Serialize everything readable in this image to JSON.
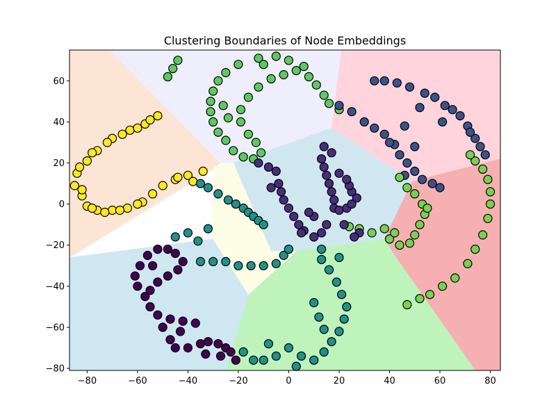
{
  "chart_data": {
    "type": "scatter",
    "title": "Clustering Boundaries of Node Embeddings",
    "xlabel": "",
    "ylabel": "",
    "xlim": [
      -87,
      84
    ],
    "ylim": [
      -81,
      75
    ],
    "x_ticks": [
      -80,
      -60,
      -40,
      -20,
      0,
      20,
      40,
      60,
      80
    ],
    "y_ticks": [
      -80,
      -60,
      -40,
      -20,
      0,
      20,
      40,
      60
    ],
    "grid": false,
    "legend": "none",
    "regions": [
      {
        "color": "#fde5d6",
        "polygon": [
          [
            -87,
            75
          ],
          [
            -71,
            75
          ],
          [
            -27,
            20
          ],
          [
            -30,
            17
          ],
          [
            -87,
            -26
          ]
        ]
      },
      {
        "color": "#eeeefc",
        "polygon": [
          [
            -71,
            75
          ],
          [
            21,
            75
          ],
          [
            20,
            37
          ],
          [
            -22,
            20
          ],
          [
            -27,
            20
          ]
        ]
      },
      {
        "color": "#ffd4dc",
        "polygon": [
          [
            21,
            75
          ],
          [
            84,
            75
          ],
          [
            84,
            22
          ],
          [
            49,
            11
          ],
          [
            17,
            37
          ]
        ]
      },
      {
        "color": "#d0e7f0",
        "polygon": [
          [
            -22,
            20
          ],
          [
            17,
            37
          ],
          [
            49,
            11
          ],
          [
            38,
            -17
          ],
          [
            3,
            -23
          ],
          [
            -7,
            -23
          ]
        ]
      },
      {
        "color": "#f6b0b2",
        "polygon": [
          [
            49,
            11
          ],
          [
            84,
            22
          ],
          [
            84,
            -81
          ],
          [
            74,
            -81
          ],
          [
            42,
            -25
          ],
          [
            38,
            -17
          ]
        ]
      },
      {
        "color": "#bef4bb",
        "polygon": [
          [
            -16,
            -44
          ],
          [
            3,
            -23
          ],
          [
            38,
            -17
          ],
          [
            42,
            -25
          ],
          [
            74,
            -81
          ],
          [
            -25,
            -81
          ]
        ]
      },
      {
        "color": "#cfe7f0",
        "polygon": [
          [
            -87,
            -26
          ],
          [
            -30,
            -17
          ],
          [
            -16,
            -44
          ],
          [
            -25,
            -81
          ],
          [
            -87,
            -81
          ]
        ]
      },
      {
        "color": "#fdfde6",
        "polygon": [
          [
            -30,
            17
          ],
          [
            -27,
            20
          ],
          [
            -22,
            20
          ],
          [
            -7,
            -23
          ],
          [
            3,
            -23
          ],
          [
            -16,
            -44
          ],
          [
            -30,
            -17
          ]
        ]
      }
    ],
    "series": [
      {
        "color": "#fde725",
        "points": [
          [
            -52,
            43
          ],
          [
            -57,
            39
          ],
          [
            -63,
            36
          ],
          [
            -70,
            32
          ],
          [
            -76,
            26
          ],
          [
            -80,
            21
          ],
          [
            -84,
            15
          ],
          [
            -85,
            9
          ],
          [
            -82,
            4
          ],
          [
            -80,
            -1
          ],
          [
            -76,
            -3
          ],
          [
            -70,
            -3
          ],
          [
            -64,
            -2
          ],
          [
            -58,
            1
          ],
          [
            -54,
            5
          ],
          [
            -50,
            9
          ],
          [
            -45,
            12
          ],
          [
            -40,
            14
          ],
          [
            -34,
            16
          ],
          [
            -38,
            11
          ],
          [
            -44,
            13
          ],
          [
            -60,
            0
          ],
          [
            -67,
            -3
          ],
          [
            -73,
            -4
          ],
          [
            -78,
            -2
          ],
          [
            -82,
            7
          ],
          [
            -83,
            18
          ],
          [
            -78,
            25
          ],
          [
            -72,
            30
          ],
          [
            -66,
            34
          ],
          [
            -60,
            37
          ],
          [
            -55,
            41
          ]
        ]
      },
      {
        "color": "#5ec962",
        "points": [
          [
            -44,
            70
          ],
          [
            -46,
            66
          ],
          [
            -48,
            62
          ],
          [
            -5,
            72
          ],
          [
            -12,
            71
          ],
          [
            -20,
            68
          ],
          [
            -25,
            64
          ],
          [
            -28,
            60
          ],
          [
            -30,
            55
          ],
          [
            -31,
            50
          ],
          [
            -31,
            45
          ],
          [
            -30,
            40
          ],
          [
            -28,
            35
          ],
          [
            -25,
            31
          ],
          [
            -22,
            26
          ],
          [
            -18,
            23
          ],
          [
            -14,
            22
          ],
          [
            -11,
            25
          ],
          [
            -13,
            30
          ],
          [
            -16,
            34
          ],
          [
            -19,
            40
          ],
          [
            -19,
            46
          ],
          [
            -16,
            52
          ],
          [
            -12,
            57
          ],
          [
            -7,
            61
          ],
          [
            -2,
            63
          ],
          [
            3,
            65
          ],
          [
            8,
            62
          ],
          [
            11,
            58
          ],
          [
            14,
            53
          ],
          [
            16,
            49
          ],
          [
            20,
            46
          ],
          [
            -26,
            48
          ],
          [
            -24,
            42
          ],
          [
            -10,
            68
          ],
          [
            0,
            70
          ],
          [
            6,
            67
          ]
        ]
      },
      {
        "color": "#3b528b",
        "points": [
          [
            20,
            48
          ],
          [
            25,
            45
          ],
          [
            30,
            40
          ],
          [
            34,
            37
          ],
          [
            38,
            34
          ],
          [
            42,
            29
          ],
          [
            44,
            24
          ],
          [
            47,
            20
          ],
          [
            50,
            16
          ],
          [
            53,
            12
          ],
          [
            57,
            10
          ],
          [
            60,
            8
          ],
          [
            34,
            60
          ],
          [
            38,
            60
          ],
          [
            43,
            59
          ],
          [
            48,
            57
          ],
          [
            54,
            54
          ],
          [
            58,
            52
          ],
          [
            62,
            48
          ],
          [
            65,
            46
          ],
          [
            68,
            43
          ],
          [
            71,
            38
          ],
          [
            74,
            32
          ],
          [
            76,
            28
          ],
          [
            78,
            24
          ],
          [
            46,
            38
          ],
          [
            40,
            30
          ],
          [
            50,
            28
          ],
          [
            46,
            14
          ],
          [
            52,
            47
          ],
          [
            61,
            40
          ],
          [
            72,
            35
          ]
        ]
      },
      {
        "color": "#7ad151",
        "points": [
          [
            47,
            -49
          ],
          [
            52,
            -46
          ],
          [
            56,
            -44
          ],
          [
            61,
            -40
          ],
          [
            66,
            -36
          ],
          [
            71,
            -29
          ],
          [
            74,
            -22
          ],
          [
            77,
            -15
          ],
          [
            79,
            -7
          ],
          [
            80,
            0
          ],
          [
            80,
            6
          ],
          [
            79,
            12
          ],
          [
            77,
            17
          ],
          [
            74,
            21
          ],
          [
            72,
            24
          ],
          [
            38,
            -12
          ],
          [
            33,
            -14
          ],
          [
            28,
            -12
          ],
          [
            24,
            -11
          ],
          [
            40,
            -17
          ],
          [
            44,
            -20
          ],
          [
            48,
            -19
          ],
          [
            50,
            -15
          ],
          [
            52,
            -10
          ],
          [
            54,
            -5
          ],
          [
            53,
            0
          ],
          [
            50,
            5
          ],
          [
            47,
            8
          ],
          [
            44,
            13
          ],
          [
            55,
            -2
          ],
          [
            42,
            -14
          ]
        ]
      },
      {
        "color": "#472d7b",
        "points": [
          [
            -12,
            20
          ],
          [
            -8,
            18
          ],
          [
            -5,
            16
          ],
          [
            -4,
            10
          ],
          [
            -3,
            6
          ],
          [
            -2,
            2
          ],
          [
            0,
            -2
          ],
          [
            2,
            -6
          ],
          [
            4,
            -10
          ],
          [
            6,
            -13
          ],
          [
            10,
            -16
          ],
          [
            13,
            -14
          ],
          [
            15,
            -10
          ],
          [
            13,
            22
          ],
          [
            14,
            18
          ],
          [
            15,
            14
          ],
          [
            16,
            10
          ],
          [
            17,
            6
          ],
          [
            18,
            2
          ],
          [
            18,
            -2
          ],
          [
            20,
            -3
          ],
          [
            23,
            -2
          ],
          [
            25,
            0
          ],
          [
            27,
            3
          ],
          [
            25,
            6
          ],
          [
            24,
            9
          ],
          [
            23,
            12
          ],
          [
            20,
            15
          ],
          [
            17,
            25
          ],
          [
            14,
            28
          ],
          [
            10,
            -6
          ],
          [
            8,
            -4
          ],
          [
            22,
            -10
          ],
          [
            28,
            -14
          ],
          [
            26,
            -16
          ],
          [
            -7,
            8
          ],
          [
            5,
            -14
          ]
        ]
      },
      {
        "color": "#21918c",
        "points": [
          [
            -35,
            10
          ],
          [
            -32,
            8
          ],
          [
            -28,
            5
          ],
          [
            -24,
            2
          ],
          [
            -21,
            0
          ],
          [
            -18,
            -2
          ],
          [
            -16,
            -4
          ],
          [
            -14,
            -6
          ],
          [
            -12,
            -8
          ],
          [
            -10,
            -10
          ],
          [
            -35,
            -28
          ],
          [
            -30,
            -28
          ],
          [
            -25,
            -28
          ],
          [
            -20,
            -30
          ],
          [
            -15,
            -30
          ],
          [
            -10,
            -30
          ],
          [
            -5,
            -29
          ],
          [
            -2,
            -25
          ],
          [
            0,
            -22
          ],
          [
            -45,
            -16
          ],
          [
            -40,
            -14
          ],
          [
            -36,
            -18
          ],
          [
            -32,
            -12
          ],
          [
            -18,
            -72
          ],
          [
            -14,
            -76
          ],
          [
            -10,
            -76
          ],
          [
            -5,
            -74
          ],
          [
            0,
            -70
          ],
          [
            5,
            -74
          ],
          [
            10,
            -76
          ],
          [
            14,
            -72
          ],
          [
            17,
            -67
          ],
          [
            20,
            -62
          ],
          [
            22,
            -56
          ],
          [
            23,
            -50
          ],
          [
            21,
            -44
          ],
          [
            19,
            -38
          ],
          [
            16,
            -32
          ],
          [
            13,
            -27
          ],
          [
            13,
            -22
          ],
          [
            10,
            -48
          ],
          [
            12,
            -55
          ],
          [
            14,
            -61
          ],
          [
            3,
            -79
          ],
          [
            -8,
            -68
          ],
          [
            20,
            -26
          ]
        ]
      },
      {
        "color": "#440154",
        "points": [
          [
            -57,
            -45
          ],
          [
            -60,
            -40
          ],
          [
            -61,
            -35
          ],
          [
            -59,
            -30
          ],
          [
            -56,
            -25
          ],
          [
            -52,
            -22
          ],
          [
            -48,
            -22
          ],
          [
            -45,
            -24
          ],
          [
            -42,
            -28
          ],
          [
            -44,
            -32
          ],
          [
            -48,
            -35
          ],
          [
            -52,
            -38
          ],
          [
            -55,
            -42
          ],
          [
            -55,
            -50
          ],
          [
            -52,
            -54
          ],
          [
            -47,
            -56
          ],
          [
            -42,
            -57
          ],
          [
            -37,
            -58
          ],
          [
            -43,
            -62
          ],
          [
            -47,
            -66
          ],
          [
            -45,
            -70
          ],
          [
            -40,
            -70
          ],
          [
            -35,
            -68
          ],
          [
            -32,
            -67
          ],
          [
            -28,
            -68
          ],
          [
            -25,
            -70
          ],
          [
            -23,
            -72
          ],
          [
            -21,
            -76
          ],
          [
            -27,
            -74
          ],
          [
            -33,
            -73
          ],
          [
            -50,
            -60
          ],
          [
            -54,
            -30
          ]
        ]
      }
    ]
  }
}
